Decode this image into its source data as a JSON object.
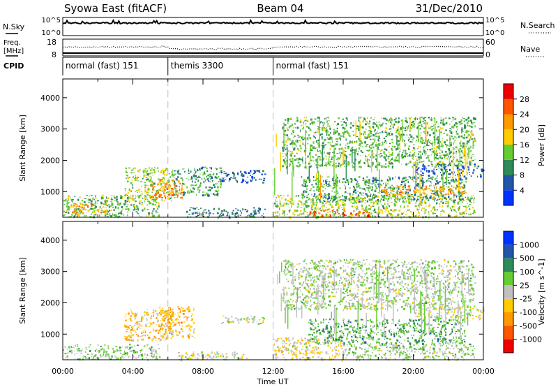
{
  "header": {
    "station": "Syowa East (fitACF)",
    "beam": "Beam 04",
    "date": "31/Dec/2010"
  },
  "strips": {
    "nsky_label": "N.Sky",
    "nsky_ticks": [
      "10^5",
      "10^0"
    ],
    "nsearch_label": "N.Search",
    "nsearch_ticks": [
      "10^5",
      "10^0"
    ],
    "freq_label_1": "Freq.",
    "freq_label_2": "[MHz]",
    "freq_ticks": [
      "18",
      "8"
    ],
    "nave_label": "Nave",
    "nave_ticks": [
      "60",
      "0"
    ],
    "cpid_label": "CPID"
  },
  "cpid_segments": [
    {
      "label": "normal (fast) 151",
      "start_hour": 0,
      "end_hour": 6
    },
    {
      "label": "themis 3300",
      "start_hour": 6,
      "end_hour": 12
    },
    {
      "label": "normal (fast) 151",
      "start_hour": 12,
      "end_hour": 24
    }
  ],
  "x_axis": {
    "label": "Time UT",
    "ticks": [
      "00:00",
      "04:00",
      "08:00",
      "12:00",
      "16:00",
      "20:00",
      "00:00"
    ]
  },
  "colors": {
    "power": [
      "#0033ff",
      "#2255aa",
      "#2e8b57",
      "#66cc33",
      "#ffcc00",
      "#ff9900",
      "#ff5500",
      "#ee0000"
    ],
    "velocity": [
      "#ee0000",
      "#ff5500",
      "#ff9900",
      "#ffcc00",
      "#c0c0c0",
      "#66cc33",
      "#2e8b57",
      "#2255aa",
      "#0033ff"
    ]
  },
  "chart_data": [
    {
      "type": "heatmap",
      "name_note": "power panel",
      "ylabel": "Slant Range [km]",
      "xlabel": "",
      "xlim": [
        0,
        24
      ],
      "ylim": [
        180,
        4600
      ],
      "y_ticks": [
        "1000",
        "2000",
        "3000",
        "4000"
      ],
      "colorbar_label": "Power [dB]",
      "colorbar_ticks": [
        "4",
        "8",
        "12",
        "16",
        "20",
        "24",
        "28"
      ],
      "value_range": [
        0,
        30
      ],
      "regions": [
        {
          "t0": 0.0,
          "t1": 5.5,
          "r0": 200,
          "r1": 900,
          "v": 12
        },
        {
          "t0": 0.5,
          "t1": 2.5,
          "r0": 300,
          "r1": 650,
          "v": 20
        },
        {
          "t0": 3.5,
          "t1": 6.3,
          "r0": 700,
          "r1": 1800,
          "v": 14
        },
        {
          "t0": 5.0,
          "t1": 6.8,
          "r0": 800,
          "r1": 1400,
          "v": 22
        },
        {
          "t0": 6.3,
          "t1": 9.0,
          "r0": 900,
          "r1": 1800,
          "v": 10
        },
        {
          "t0": 9.0,
          "t1": 11.5,
          "r0": 1300,
          "r1": 1700,
          "v": 6
        },
        {
          "t0": 7.0,
          "t1": 11.5,
          "r0": 200,
          "r1": 500,
          "v": 8
        },
        {
          "t0": 12.0,
          "t1": 23.5,
          "r0": 200,
          "r1": 900,
          "v": 14
        },
        {
          "t0": 14.0,
          "t1": 17.5,
          "r0": 250,
          "r1": 450,
          "v": 24
        },
        {
          "t0": 13.5,
          "t1": 23.0,
          "r0": 700,
          "r1": 1500,
          "v": 10
        },
        {
          "t0": 18.0,
          "t1": 23.0,
          "r0": 900,
          "r1": 1200,
          "v": 20
        },
        {
          "t0": 20.0,
          "t1": 24.0,
          "r0": 1500,
          "r1": 1900,
          "v": 5
        },
        {
          "t0": 12.5,
          "t1": 23.5,
          "r0": 1800,
          "r1": 3400,
          "v": 12
        }
      ]
    },
    {
      "type": "heatmap",
      "name_note": "velocity panel",
      "ylabel": "Slant Range [km]",
      "xlabel": "Time UT",
      "xlim": [
        0,
        24
      ],
      "ylim": [
        180,
        4600
      ],
      "y_ticks": [
        "1000",
        "2000",
        "3000",
        "4000"
      ],
      "colorbar_label": "Velocity [m s^-1]",
      "colorbar_ticks": [
        "-1000",
        "-500",
        "-100",
        "-25",
        "25",
        "100",
        "500",
        "1000"
      ],
      "value_range": [
        -1200,
        1200
      ],
      "regions": [
        {
          "t0": 0.0,
          "t1": 5.5,
          "r0": 200,
          "r1": 700,
          "v": 200
        },
        {
          "t0": 3.5,
          "t1": 6.3,
          "r0": 800,
          "r1": 1800,
          "v": -300
        },
        {
          "t0": 5.5,
          "t1": 7.5,
          "r0": 900,
          "r1": 1900,
          "v": -400
        },
        {
          "t0": 6.5,
          "t1": 10.5,
          "r0": 200,
          "r1": 450,
          "v": 0
        },
        {
          "t0": 9.0,
          "t1": 11.5,
          "r0": 1350,
          "r1": 1600,
          "v": 0
        },
        {
          "t0": 12.0,
          "t1": 16.0,
          "r0": 200,
          "r1": 900,
          "v": -150
        },
        {
          "t0": 16.0,
          "t1": 23.5,
          "r0": 200,
          "r1": 700,
          "v": 150
        },
        {
          "t0": 14.0,
          "t1": 23.0,
          "r0": 700,
          "r1": 1500,
          "v": 400
        },
        {
          "t0": 20.0,
          "t1": 24.0,
          "r0": 1500,
          "r1": 1900,
          "v": 0
        },
        {
          "t0": 12.5,
          "t1": 23.5,
          "r0": 1800,
          "r1": 3400,
          "v": 120
        }
      ]
    }
  ]
}
